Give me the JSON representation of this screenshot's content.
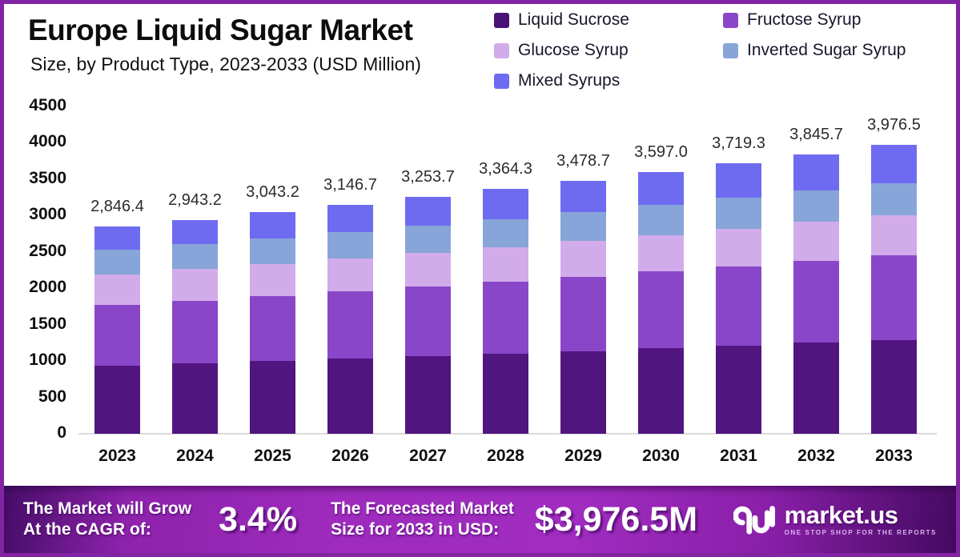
{
  "header": {
    "title": "Europe Liquid Sugar Market",
    "subtitle": "Size, by Product Type, 2023-2033 (USD Million)"
  },
  "legend": {
    "position": "top-right",
    "items": [
      {
        "label": "Liquid Sucrose",
        "color": "#4A1278"
      },
      {
        "label": "Fructose Syrup",
        "color": "#8A46C8"
      },
      {
        "label": "Glucose Syrup",
        "color": "#D2ABEA"
      },
      {
        "label": "Inverted Sugar Syrup",
        "color": "#88A5D9"
      },
      {
        "label": "Mixed Syrups",
        "color": "#6E6BF0"
      }
    ],
    "column_order": [
      "Liquid Sucrose",
      "Fructose Syrup",
      "Glucose Syrup",
      "Inverted Sugar Syrup",
      "Mixed Syrups"
    ]
  },
  "chart_data": {
    "type": "bar",
    "stacked": true,
    "title": "Europe Liquid Sugar Market Size, by Product Type, 2023-2033 (USD Million)",
    "xlabel": "",
    "ylabel": "",
    "ylim": [
      0,
      4500
    ],
    "y_ticks": [
      0,
      500,
      1000,
      1500,
      2000,
      2500,
      3000,
      3500,
      4000,
      4500
    ],
    "grid": false,
    "legend_position": "top-right",
    "categories": [
      "2023",
      "2024",
      "2025",
      "2026",
      "2027",
      "2028",
      "2029",
      "2030",
      "2031",
      "2032",
      "2033"
    ],
    "totals": [
      2846.4,
      2943.2,
      3043.2,
      3146.7,
      3253.7,
      3364.3,
      3478.7,
      3597.0,
      3719.3,
      3845.7,
      3976.5
    ],
    "series": [
      {
        "name": "Liquid Sucrose",
        "color": "#511580",
        "values": [
          940.0,
          970.4,
          1001.7,
          1034.1,
          1067.5,
          1102.0,
          1137.6,
          1174.3,
          1212.2,
          1251.4,
          1292.0
        ]
      },
      {
        "name": "Fructose Syrup",
        "color": "#8A46C8",
        "values": [
          833.0,
          861.6,
          891.1,
          921.7,
          953.3,
          986.0,
          1019.8,
          1054.8,
          1091.0,
          1128.4,
          1167.0
        ]
      },
      {
        "name": "Glucose Syrup",
        "color": "#D2ABEA",
        "values": [
          420.0,
          431.1,
          442.5,
          454.2,
          466.2,
          478.5,
          491.1,
          504.1,
          517.4,
          531.1,
          545.0
        ]
      },
      {
        "name": "Inverted Sugar Syrup",
        "color": "#88A5D9",
        "values": [
          335.0,
          344.6,
          354.5,
          364.7,
          375.2,
          386.0,
          397.1,
          408.5,
          420.2,
          432.3,
          445.0
        ]
      },
      {
        "name": "Mixed Syrups",
        "color": "#6E6BF0",
        "values": [
          318.4,
          335.5,
          353.4,
          372.0,
          391.5,
          411.8,
          433.1,
          455.3,
          478.5,
          502.5,
          527.5
        ]
      }
    ],
    "value_labels": [
      "2,846.4",
      "2,943.2",
      "3,043.2",
      "3,146.7",
      "3,253.7",
      "3,364.3",
      "3,478.7",
      "3,597.0",
      "3,719.3",
      "3,845.7",
      "3,976.5"
    ]
  },
  "footer": {
    "cagr_label_line1": "The Market will Grow",
    "cagr_label_line2": "At the CAGR of:",
    "cagr_value": "3.4%",
    "forecast_label_line1": "The Forecasted Market",
    "forecast_label_line2": "Size for 2033 in USD:",
    "forecast_value": "$3,976.5M",
    "brand_name": "market.us",
    "brand_tagline": "ONE STOP SHOP FOR THE REPORTS"
  },
  "colors": {
    "frame_border": "#8224A2",
    "banner_center": "#9E2BBD",
    "banner_edge": "#450D67",
    "axis_text": "#101010",
    "value_label_text": "#2B2B2B"
  }
}
